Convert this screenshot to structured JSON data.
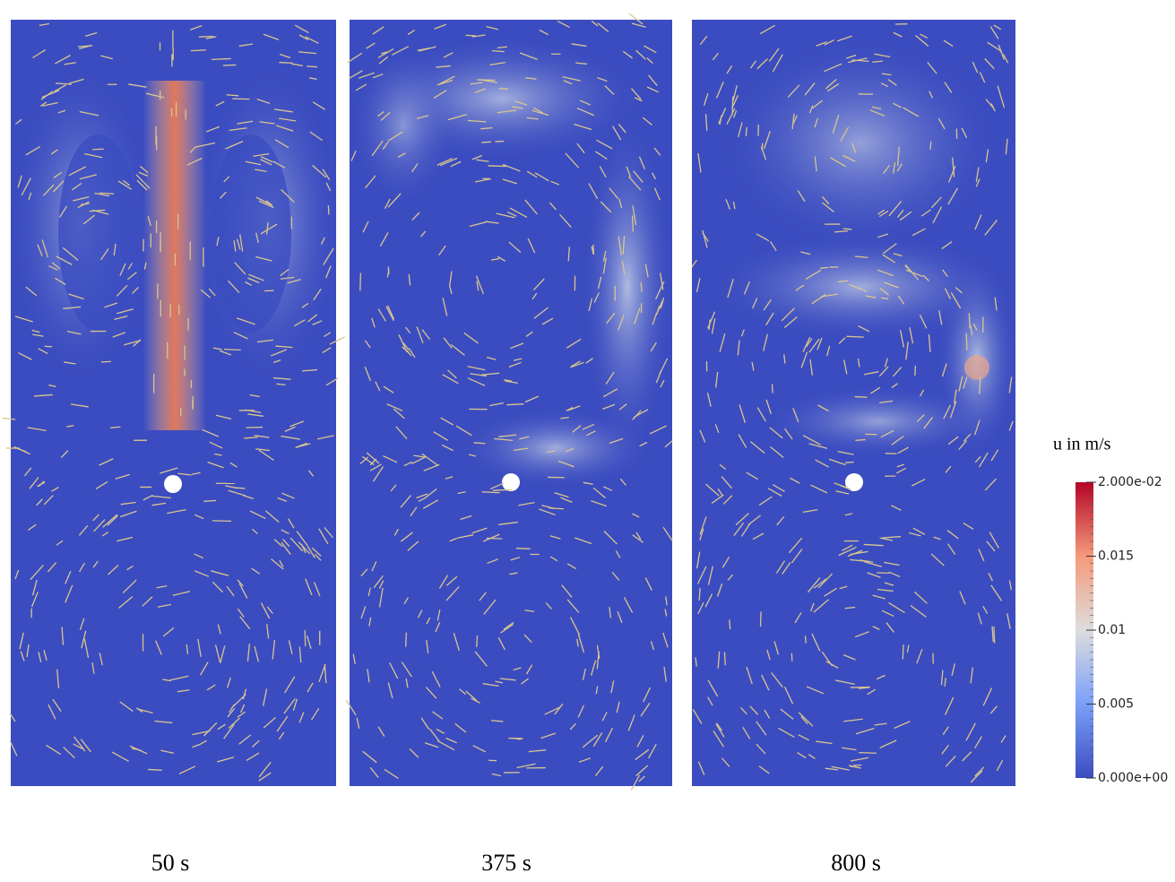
{
  "panels": [
    {
      "label": "50 s"
    },
    {
      "label": "375 s"
    },
    {
      "label": "800 s"
    }
  ],
  "colorbar": {
    "title": "u in m/s",
    "range": [
      0,
      0.02
    ],
    "colors": [
      "#3b4cc0",
      "#7b9ff9",
      "#dddddd",
      "#f49a7b",
      "#b40426"
    ],
    "ticks": [
      {
        "value": 0.02,
        "label": "2.000e-02"
      },
      0.015,
      0.01,
      0.005,
      {
        "value": 0,
        "label": "0.000e+00"
      }
    ]
  }
}
